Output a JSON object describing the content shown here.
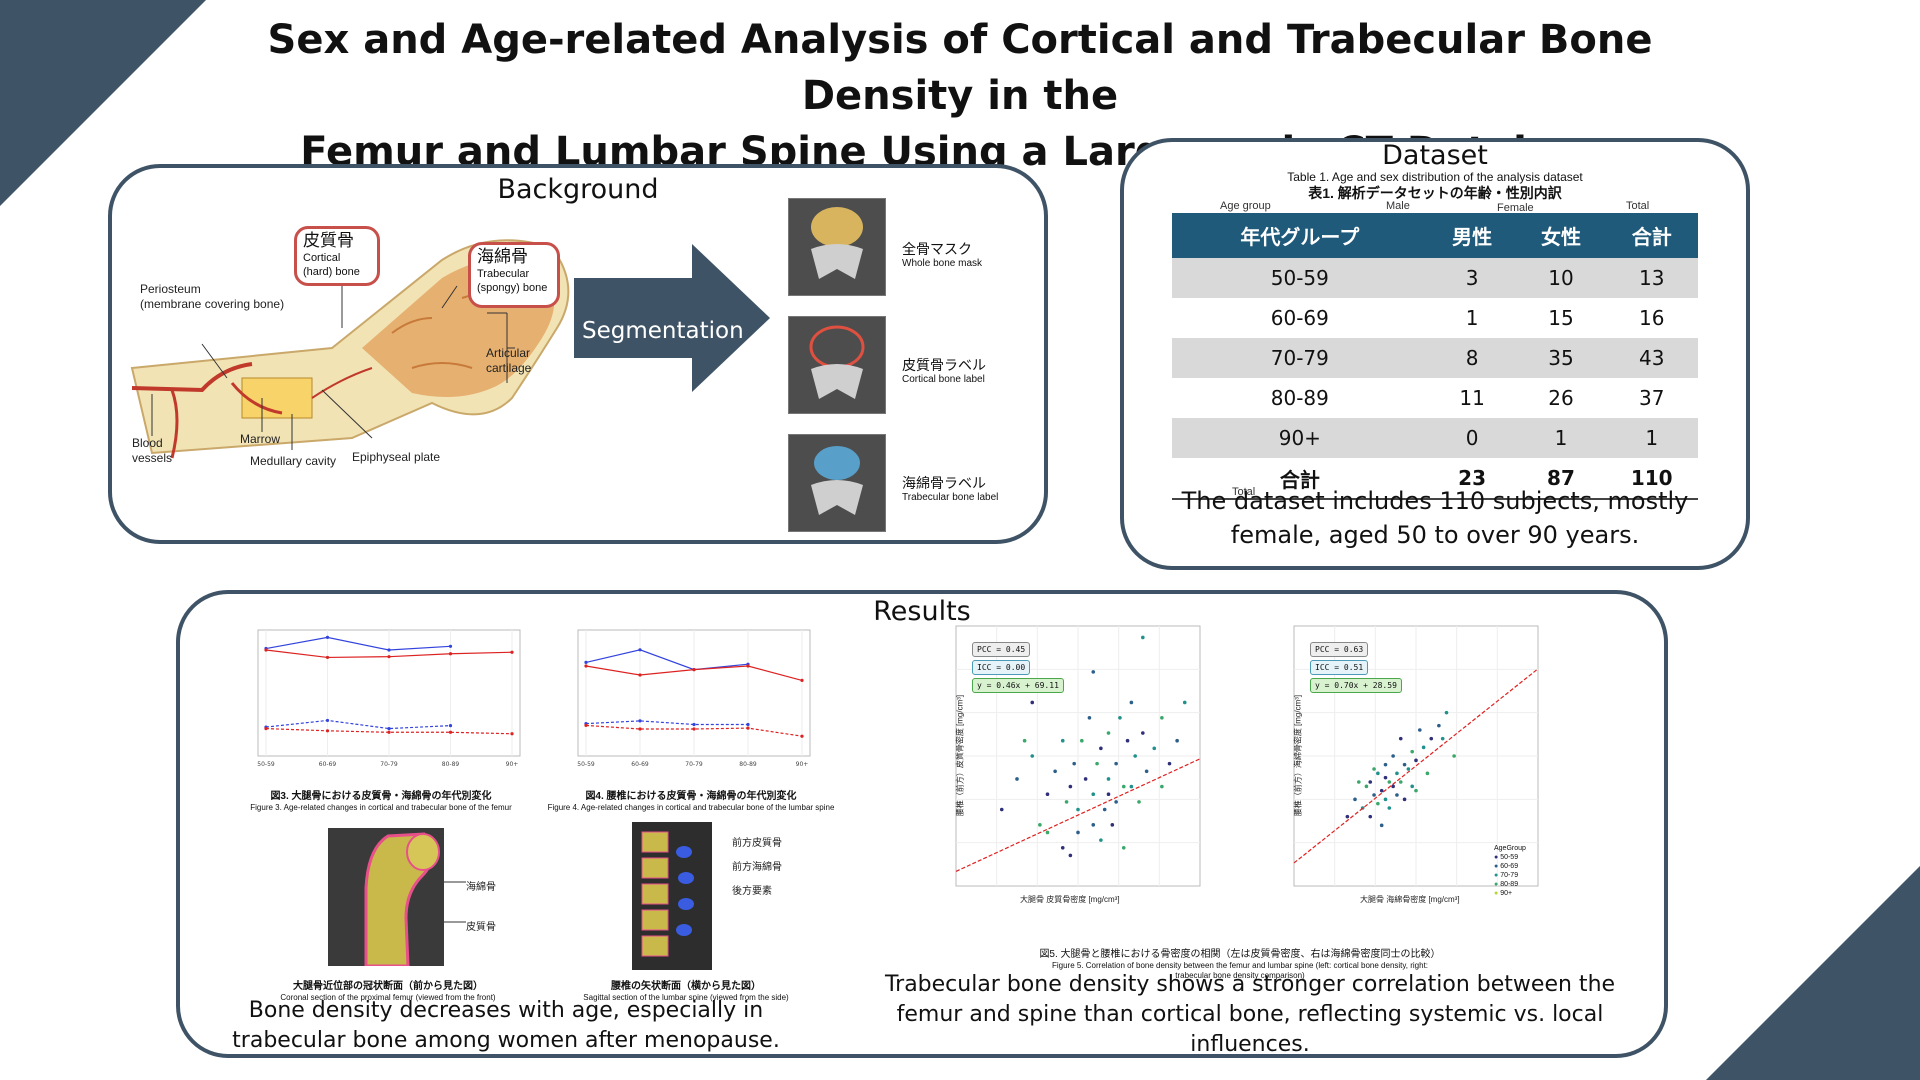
{
  "title": {
    "line1": "Sex and Age-related Analysis of Cortical and Trabecular Bone Density in the",
    "line2": "Femur and Lumbar Spine Using a Large-scale CT Database"
  },
  "background": {
    "heading": "Background",
    "cortical_jp": "皮質骨",
    "cortical_en1": "Cortical",
    "cortical_en2": "(hard) bone",
    "trabecular_jp": "海綿骨",
    "trabecular_en1": "Trabecular",
    "trabecular_en2": "(spongy) bone",
    "periosteum1": "Periosteum",
    "periosteum2": "(membrane covering bone)",
    "articular1": "Articular",
    "articular2": "cartilage",
    "blood1": "Blood",
    "blood2": "vessels",
    "marrow": "Marrow",
    "medullary": "Medullary cavity",
    "epiphyseal": "Epiphyseal plate",
    "segmentation": "Segmentation",
    "masks": [
      {
        "jp": "全骨マスク",
        "en": "Whole bone mask"
      },
      {
        "jp": "皮質骨ラベル",
        "en": "Cortical bone label"
      },
      {
        "jp": "海綿骨ラベル",
        "en": "Trabecular bone label"
      }
    ]
  },
  "dataset": {
    "heading": "Dataset",
    "caption_en": "Table 1. Age and sex distribution of the analysis dataset",
    "caption_jp": "表1. 解析データセットの年齢・性別内訳",
    "col_en": [
      "Age group",
      "Male",
      "Female",
      "Total"
    ],
    "headers": [
      "年代グループ",
      "男性",
      "女性",
      "合計"
    ],
    "rows": [
      [
        "50-59",
        "3",
        "10",
        "13"
      ],
      [
        "60-69",
        "1",
        "15",
        "16"
      ],
      [
        "70-79",
        "8",
        "35",
        "43"
      ],
      [
        "80-89",
        "11",
        "26",
        "37"
      ],
      [
        "90+",
        "0",
        "1",
        "1"
      ]
    ],
    "total_row": [
      "合計",
      "23",
      "87",
      "110"
    ],
    "total_en": "Total",
    "summary": "The dataset includes 110 subjects, mostly female, aged 50 to over 90 years."
  },
  "results": {
    "heading": "Results",
    "fig3_jp": "図3. 大腿骨における皮質骨・海綿骨の年代別変化",
    "fig3_en": "Figure 3. Age-related changes in cortical and trabecular bone of the femur",
    "fig4_jp": "図4. 腰椎における皮質骨・海綿骨の年代別変化",
    "fig4_en": "Figure 4. Age-related changes in cortical and trabecular bone of the lumbar spine",
    "femur_trab": "海綿骨",
    "femur_cort": "皮質骨",
    "femur_cap_jp": "大腿骨近位部の冠状断面（前から見た図）",
    "femur_cap_en": "Coronal section of the proximal femur (viewed from the front)",
    "spine_ant_cort": "前方皮質骨",
    "spine_ant_trab": "前方海綿骨",
    "spine_post": "後方要素",
    "spine_cap_jp": "腰椎の矢状断面（横から見た図）",
    "spine_cap_en": "Sagittal section of the lumbar spine (viewed from the side)",
    "left_summary": "Bone density decreases with age, especially in trabecular bone among women after menopause.",
    "fig5_jp": "図5. 大腿骨と腰椎における骨密度の相関（左は皮質骨密度、右は海綿骨密度同士の比較）",
    "fig5_en1": "Figure 5. Correlation of bone density between the femur and lumbar spine (left: cortical bone density, right:",
    "fig5_en2": "trabecular bone density comparison)",
    "scatter1": {
      "pcc": "PCC = 0.45",
      "icc": "ICC = 0.00",
      "eq": "y = 0.46x + 69.11",
      "xlabel": "大腿骨 皮質骨密度 [mg/cm³]",
      "ylabel": "腰椎（前方）皮質骨密度 [mg/cm³]"
    },
    "scatter2": {
      "pcc": "PCC = 0.63",
      "icc": "ICC = 0.51",
      "eq": "y = 0.70x + 28.59",
      "xlabel": "大腿骨 海綿骨密度 [mg/cm³]",
      "ylabel": "腰椎（前方）海綿骨密度 [mg/cm³]"
    },
    "legend_title": "AgeGroup",
    "legend_items": [
      "50-59",
      "60-69",
      "70-79",
      "80-89",
      "90+"
    ],
    "right_summary": "Trabecular bone density shows a stronger correlation between the femur and spine than cortical bone, reflecting systemic vs. local influences."
  },
  "colors": {
    "panel_border": "#3f5366",
    "table_header": "#1f5a7a",
    "callout": "#c8504a",
    "arrow": "#3f5366"
  },
  "chart_data": [
    {
      "type": "line",
      "x": [
        "50-59",
        "60-69",
        "70-79",
        "80-89",
        "90+"
      ],
      "ylim": [
        0,
        850
      ],
      "series": [
        {
          "values": [
            725,
            800,
            715,
            740,
            null
          ],
          "color": "#3344dd"
        },
        {
          "values": [
            715,
            665,
            670,
            690,
            700
          ],
          "color": "#dd2222"
        },
        {
          "values": [
            195,
            240,
            185,
            205,
            null
          ],
          "color": "#3344dd",
          "dashed": true
        },
        {
          "values": [
            185,
            170,
            160,
            160,
            150
          ],
          "color": "#dd2222",
          "dashed": true
        }
      ]
    },
    {
      "type": "line",
      "x": [
        "50-59",
        "60-69",
        "70-79",
        "80-89",
        "90+"
      ],
      "ylim": [
        0,
        700
      ],
      "series": [
        {
          "values": [
            520,
            590,
            480,
            510,
            null
          ],
          "color": "#3344dd"
        },
        {
          "values": [
            500,
            450,
            480,
            500,
            420
          ],
          "color": "#dd2222"
        },
        {
          "values": [
            180,
            195,
            175,
            175,
            null
          ],
          "color": "#3344dd",
          "dashed": true
        },
        {
          "values": [
            170,
            150,
            150,
            155,
            110
          ],
          "color": "#dd2222",
          "dashed": true
        }
      ]
    },
    {
      "type": "scatter",
      "xlim": [
        500,
        820
      ],
      "ylim": [
        280,
        620
      ],
      "points": [
        [
          560,
          380
        ],
        [
          580,
          420
        ],
        [
          600,
          450
        ],
        [
          610,
          360
        ],
        [
          620,
          400
        ],
        [
          630,
          430
        ],
        [
          640,
          470
        ],
        [
          645,
          390
        ],
        [
          650,
          410
        ],
        [
          655,
          440
        ],
        [
          660,
          380
        ],
        [
          665,
          470
        ],
        [
          670,
          420
        ],
        [
          675,
          500
        ],
        [
          680,
          400
        ],
        [
          685,
          440
        ],
        [
          690,
          460
        ],
        [
          695,
          380
        ],
        [
          700,
          420
        ],
        [
          700,
          480
        ],
        [
          705,
          360
        ],
        [
          710,
          440
        ],
        [
          715,
          500
        ],
        [
          720,
          410
        ],
        [
          725,
          470
        ],
        [
          730,
          520
        ],
        [
          735,
          450
        ],
        [
          740,
          390
        ],
        [
          745,
          480
        ],
        [
          750,
          430
        ],
        [
          760,
          460
        ],
        [
          770,
          500
        ],
        [
          780,
          440
        ],
        [
          790,
          470
        ],
        [
          800,
          520
        ],
        [
          620,
          350
        ],
        [
          640,
          330
        ],
        [
          660,
          350
        ],
        [
          690,
          340
        ],
        [
          720,
          330
        ],
        [
          600,
          520
        ],
        [
          680,
          560
        ],
        [
          745,
          605
        ],
        [
          590,
          470
        ],
        [
          650,
          320
        ],
        [
          710,
          390
        ],
        [
          730,
          410
        ],
        [
          770,
          410
        ],
        [
          700,
          400
        ],
        [
          680,
          360
        ]
      ],
      "trend": [
        [
          500,
          299.1
        ],
        [
          820,
          446.3
        ]
      ]
    },
    {
      "type": "scatter",
      "xlim": [
        40,
        360
      ],
      "ylim": [
        30,
        330
      ],
      "points": [
        [
          110,
          110
        ],
        [
          120,
          130
        ],
        [
          130,
          120
        ],
        [
          135,
          145
        ],
        [
          140,
          150
        ],
        [
          145,
          135
        ],
        [
          150,
          160
        ],
        [
          150,
          125
        ],
        [
          155,
          140
        ],
        [
          160,
          170
        ],
        [
          160,
          130
        ],
        [
          165,
          150
        ],
        [
          170,
          145
        ],
        [
          170,
          180
        ],
        [
          175,
          160
        ],
        [
          180,
          150
        ],
        [
          180,
          200
        ],
        [
          185,
          170
        ],
        [
          190,
          165
        ],
        [
          195,
          185
        ],
        [
          200,
          175
        ],
        [
          205,
          210
        ],
        [
          210,
          190
        ],
        [
          215,
          160
        ],
        [
          220,
          200
        ],
        [
          230,
          215
        ],
        [
          240,
          230
        ],
        [
          250,
          180
        ],
        [
          140,
          110
        ],
        [
          155,
          100
        ],
        [
          165,
          120
        ],
        [
          125,
          150
        ],
        [
          185,
          130
        ],
        [
          170,
          265
        ],
        [
          235,
          200
        ],
        [
          145,
          165
        ],
        [
          160,
          155
        ],
        [
          175,
          135
        ],
        [
          195,
          145
        ],
        [
          200,
          140
        ]
      ],
      "trend": [
        [
          40,
          56.6
        ],
        [
          360,
          280.6
        ]
      ]
    }
  ]
}
